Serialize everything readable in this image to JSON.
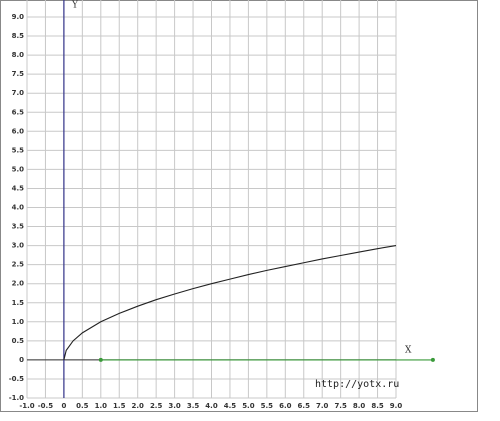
{
  "chart_data": {
    "type": "line",
    "x_label": "X",
    "y_label": "Y",
    "watermark": "http://yotx.ru",
    "xlim": [
      -1,
      9
    ],
    "ylim": [
      -1,
      9
    ],
    "grid": true,
    "xticks": [
      {
        "value": -1,
        "label": "-1.0"
      },
      -0.5,
      0,
      0.5,
      {
        "value": 1,
        "label": "1.0"
      },
      1.5,
      {
        "value": 2,
        "label": "2.0"
      },
      2.5,
      {
        "value": 3,
        "label": "3.0"
      },
      3.5,
      {
        "value": 4,
        "label": "4.0"
      },
      4.5,
      {
        "value": 5,
        "label": "5.0"
      },
      5.5,
      {
        "value": 6,
        "label": "6.0"
      },
      6.5,
      {
        "value": 7,
        "label": "7.0"
      },
      7.5,
      {
        "value": 8,
        "label": "8.0"
      },
      8.5,
      {
        "value": 9,
        "label": "9.0"
      }
    ],
    "yticks": [
      {
        "value": -1,
        "label": "-1.0"
      },
      -0.5,
      0,
      0.5,
      {
        "value": 1,
        "label": "1.0"
      },
      1.5,
      {
        "value": 2,
        "label": "2.0"
      },
      2.5,
      {
        "value": 3,
        "label": "3.0"
      },
      3.5,
      {
        "value": 4,
        "label": "4.0"
      },
      4.5,
      {
        "value": 5,
        "label": "5.0"
      },
      5.5,
      {
        "value": 6,
        "label": "6.0"
      },
      6.5,
      {
        "value": 7,
        "label": "7.0"
      },
      7.5,
      {
        "value": 8,
        "label": "8.0"
      },
      8.5,
      {
        "value": 9,
        "label": "9.0"
      }
    ],
    "series": [
      {
        "color": "#222222",
        "x": [
          0,
          0.0625,
          0.25,
          0.5,
          1,
          1.5,
          2,
          2.5,
          3,
          3.5,
          4,
          4.5,
          5,
          5.5,
          6,
          6.5,
          7,
          7.5,
          8,
          8.5,
          9
        ],
        "values": [
          0,
          0.25,
          0.5,
          0.71,
          1,
          1.22,
          1.41,
          1.58,
          1.73,
          1.87,
          2,
          2.12,
          2.24,
          2.35,
          2.45,
          2.55,
          2.65,
          2.74,
          2.83,
          2.92,
          3
        ]
      },
      {
        "color": "#3a9a3a",
        "markers": true,
        "x": [
          1,
          10
        ],
        "values": [
          0,
          0
        ]
      }
    ]
  }
}
